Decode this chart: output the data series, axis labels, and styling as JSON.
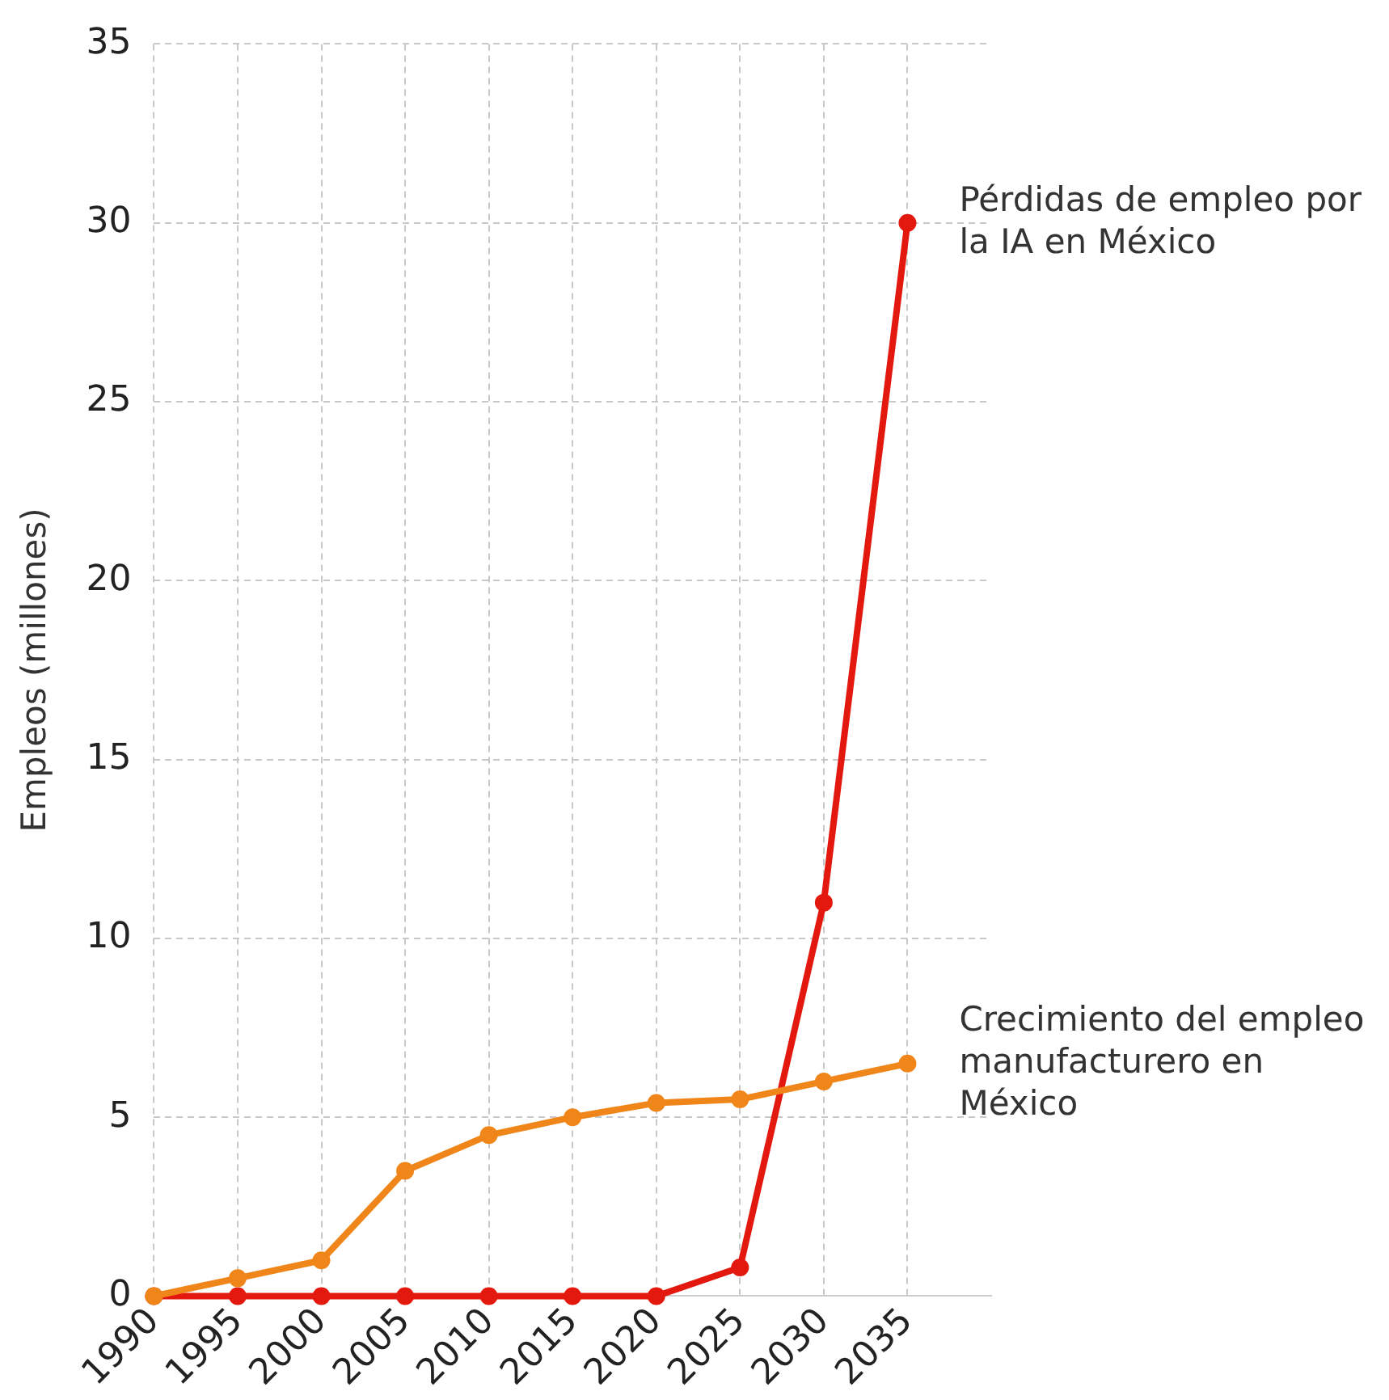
{
  "chart_data": {
    "type": "line",
    "ylabel": "Empleos (millones)",
    "x": [
      1990,
      1995,
      2000,
      2005,
      2010,
      2015,
      2020,
      2025,
      2030,
      2035
    ],
    "series": [
      {
        "name": "Crecimiento del empleo manufacturero en México",
        "color": "#f0861a",
        "values": [
          0,
          0.5,
          1,
          3.5,
          4.5,
          5,
          5.4,
          5.5,
          6,
          6.5
        ]
      },
      {
        "name": "Pérdidas de empleo por la IA en México",
        "color": "#e3190f",
        "values": [
          0,
          0,
          0,
          0,
          0,
          0,
          0,
          0.8,
          11,
          30
        ]
      }
    ],
    "xlim": [
      1990,
      2040
    ],
    "xticks": [
      1990,
      1995,
      2000,
      2005,
      2010,
      2015,
      2020,
      2025,
      2030,
      2035
    ],
    "ylim": [
      0,
      35
    ],
    "yticks": [
      0,
      5,
      10,
      15,
      20,
      25,
      30,
      35
    ],
    "grid": true,
    "legend": false,
    "marker": "circle",
    "line_style": "solid"
  }
}
